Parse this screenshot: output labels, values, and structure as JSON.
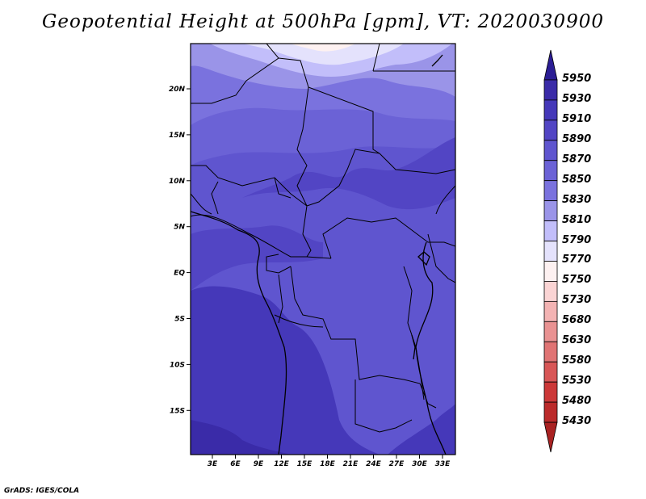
{
  "title": "Geopotential Height at 500hPa [gpm], VT: 2020030900",
  "credit": "GrADS: IGES/COLA",
  "map": {
    "lat_ticks": [
      "20N",
      "15N",
      "10N",
      "5N",
      "EQ",
      "5S",
      "10S",
      "15S"
    ],
    "lon_ticks": [
      "3E",
      "6E",
      "9E",
      "12E",
      "15E",
      "18E",
      "21E",
      "24E",
      "27E",
      "30E",
      "33E"
    ]
  },
  "legend": {
    "levels": [
      "5950",
      "5930",
      "5910",
      "5890",
      "5870",
      "5850",
      "5830",
      "5810",
      "5790",
      "5770",
      "5750",
      "5730",
      "5680",
      "5630",
      "5580",
      "5530",
      "5480",
      "5430"
    ],
    "colors": [
      "#2b1d94",
      "#3a2ba8",
      "#4538b9",
      "#5245c4",
      "#5f55cf",
      "#6b62d6",
      "#7a72de",
      "#9a94e8",
      "#c2befa",
      "#e4e2fc",
      "#fdf1f1",
      "#fad4d4",
      "#f3b3b3",
      "#e99292",
      "#e07474",
      "#d85656",
      "#cc3838",
      "#bb2a2a",
      "#a92222"
    ]
  }
}
